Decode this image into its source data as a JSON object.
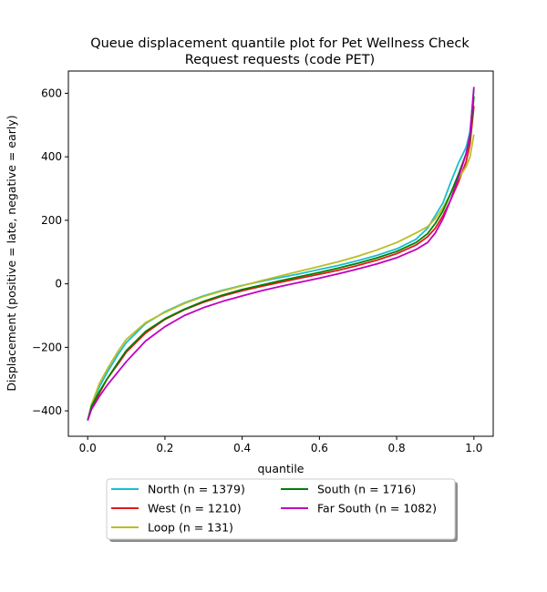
{
  "chart_data": {
    "type": "line",
    "title": [
      "Queue displacement quantile plot for Pet Wellness Check",
      "Request  requests (code PET)"
    ],
    "xlabel": "quantile",
    "ylabel": "Displacement (positive = late, negative = early)",
    "xlim": [
      -0.05,
      1.05
    ],
    "ylim": [
      -480,
      670
    ],
    "xticks": [
      0.0,
      0.2,
      0.4,
      0.6,
      0.8,
      1.0
    ],
    "xtick_labels": [
      "0.0",
      "0.2",
      "0.4",
      "0.6",
      "0.8",
      "1.0"
    ],
    "yticks": [
      -400,
      -200,
      0,
      200,
      400,
      600
    ],
    "ytick_labels": [
      "−400",
      "−200",
      "0",
      "200",
      "400",
      "600"
    ],
    "grid": false,
    "legend_position": "below plot, centered, two columns",
    "series": [
      {
        "name": "North (n = 1379)",
        "color": "#17becf",
        "points": [
          [
            0.0,
            -430
          ],
          [
            0.01,
            -380
          ],
          [
            0.03,
            -325
          ],
          [
            0.05,
            -280
          ],
          [
            0.08,
            -220
          ],
          [
            0.1,
            -185
          ],
          [
            0.15,
            -125
          ],
          [
            0.2,
            -88
          ],
          [
            0.25,
            -60
          ],
          [
            0.3,
            -38
          ],
          [
            0.35,
            -20
          ],
          [
            0.4,
            -5
          ],
          [
            0.45,
            8
          ],
          [
            0.5,
            20
          ],
          [
            0.55,
            32
          ],
          [
            0.6,
            45
          ],
          [
            0.65,
            58
          ],
          [
            0.7,
            73
          ],
          [
            0.75,
            90
          ],
          [
            0.8,
            110
          ],
          [
            0.85,
            140
          ],
          [
            0.88,
            175
          ],
          [
            0.9,
            215
          ],
          [
            0.92,
            255
          ],
          [
            0.94,
            320
          ],
          [
            0.96,
            380
          ],
          [
            0.98,
            430
          ],
          [
            0.99,
            480
          ],
          [
            1.0,
            610
          ]
        ]
      },
      {
        "name": "West (n = 1210)",
        "color": "#e31a1c",
        "points": [
          [
            0.0,
            -430
          ],
          [
            0.01,
            -390
          ],
          [
            0.03,
            -345
          ],
          [
            0.05,
            -300
          ],
          [
            0.08,
            -250
          ],
          [
            0.1,
            -215
          ],
          [
            0.15,
            -155
          ],
          [
            0.2,
            -112
          ],
          [
            0.25,
            -82
          ],
          [
            0.3,
            -58
          ],
          [
            0.35,
            -38
          ],
          [
            0.4,
            -22
          ],
          [
            0.45,
            -8
          ],
          [
            0.5,
            5
          ],
          [
            0.55,
            18
          ],
          [
            0.6,
            30
          ],
          [
            0.65,
            43
          ],
          [
            0.7,
            58
          ],
          [
            0.75,
            75
          ],
          [
            0.8,
            95
          ],
          [
            0.85,
            122
          ],
          [
            0.88,
            148
          ],
          [
            0.9,
            175
          ],
          [
            0.92,
            215
          ],
          [
            0.94,
            265
          ],
          [
            0.96,
            320
          ],
          [
            0.98,
            385
          ],
          [
            0.99,
            440
          ],
          [
            1.0,
            560
          ]
        ]
      },
      {
        "name": "Loop (n = 131)",
        "color": "#bcbd22",
        "points": [
          [
            0.0,
            -430
          ],
          [
            0.01,
            -380
          ],
          [
            0.03,
            -315
          ],
          [
            0.05,
            -270
          ],
          [
            0.08,
            -210
          ],
          [
            0.1,
            -175
          ],
          [
            0.15,
            -122
          ],
          [
            0.2,
            -90
          ],
          [
            0.25,
            -62
          ],
          [
            0.3,
            -40
          ],
          [
            0.35,
            -22
          ],
          [
            0.4,
            -6
          ],
          [
            0.45,
            10
          ],
          [
            0.5,
            25
          ],
          [
            0.55,
            40
          ],
          [
            0.6,
            55
          ],
          [
            0.65,
            70
          ],
          [
            0.7,
            87
          ],
          [
            0.75,
            107
          ],
          [
            0.8,
            130
          ],
          [
            0.85,
            160
          ],
          [
            0.88,
            180
          ],
          [
            0.9,
            205
          ],
          [
            0.92,
            240
          ],
          [
            0.94,
            285
          ],
          [
            0.96,
            330
          ],
          [
            0.98,
            370
          ],
          [
            0.99,
            400
          ],
          [
            1.0,
            470
          ]
        ]
      },
      {
        "name": "South (n = 1716)",
        "color": "#008000",
        "points": [
          [
            0.0,
            -430
          ],
          [
            0.01,
            -385
          ],
          [
            0.03,
            -340
          ],
          [
            0.05,
            -300
          ],
          [
            0.08,
            -245
          ],
          [
            0.1,
            -210
          ],
          [
            0.15,
            -150
          ],
          [
            0.2,
            -110
          ],
          [
            0.25,
            -80
          ],
          [
            0.3,
            -55
          ],
          [
            0.35,
            -35
          ],
          [
            0.4,
            -18
          ],
          [
            0.45,
            -4
          ],
          [
            0.5,
            10
          ],
          [
            0.55,
            23
          ],
          [
            0.6,
            36
          ],
          [
            0.65,
            50
          ],
          [
            0.7,
            65
          ],
          [
            0.75,
            82
          ],
          [
            0.8,
            102
          ],
          [
            0.85,
            130
          ],
          [
            0.88,
            158
          ],
          [
            0.9,
            190
          ],
          [
            0.92,
            230
          ],
          [
            0.94,
            285
          ],
          [
            0.96,
            345
          ],
          [
            0.98,
            410
          ],
          [
            0.99,
            460
          ],
          [
            1.0,
            590
          ]
        ]
      },
      {
        "name": "Far South (n = 1082)",
        "color": "#c000c0",
        "points": [
          [
            0.0,
            -430
          ],
          [
            0.01,
            -395
          ],
          [
            0.03,
            -355
          ],
          [
            0.05,
            -320
          ],
          [
            0.08,
            -275
          ],
          [
            0.1,
            -245
          ],
          [
            0.15,
            -180
          ],
          [
            0.2,
            -135
          ],
          [
            0.25,
            -100
          ],
          [
            0.3,
            -75
          ],
          [
            0.35,
            -55
          ],
          [
            0.4,
            -38
          ],
          [
            0.45,
            -22
          ],
          [
            0.5,
            -8
          ],
          [
            0.55,
            5
          ],
          [
            0.6,
            18
          ],
          [
            0.65,
            32
          ],
          [
            0.7,
            47
          ],
          [
            0.75,
            63
          ],
          [
            0.8,
            82
          ],
          [
            0.85,
            108
          ],
          [
            0.88,
            130
          ],
          [
            0.9,
            160
          ],
          [
            0.92,
            205
          ],
          [
            0.94,
            265
          ],
          [
            0.96,
            335
          ],
          [
            0.98,
            410
          ],
          [
            0.99,
            470
          ],
          [
            1.0,
            620
          ]
        ]
      }
    ]
  }
}
